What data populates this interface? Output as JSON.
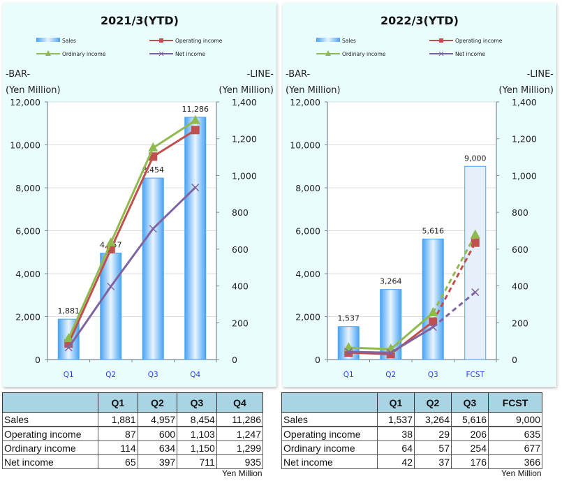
{
  "chart_data": [
    {
      "type": "bar+line",
      "title": "2021/3(YTD)",
      "categories": [
        "Q1",
        "Q2",
        "Q3",
        "Q4"
      ],
      "left_axis": {
        "label_top": "-BAR-",
        "label": "(Yen Million)",
        "range": [
          0,
          12000
        ],
        "ticks": [
          "0",
          "2,000",
          "4,000",
          "6,000",
          "8,000",
          "10,000",
          "12,000"
        ],
        "tick_values": [
          0,
          2000,
          4000,
          6000,
          8000,
          10000,
          12000
        ]
      },
      "right_axis": {
        "label_top": "-LINE-",
        "label": "(Yen Million)",
        "range": [
          0,
          1400
        ],
        "ticks": [
          "0",
          "200",
          "400",
          "600",
          "800",
          "1,000",
          "1,200",
          "1,400"
        ],
        "tick_values": [
          0,
          200,
          400,
          600,
          800,
          1000,
          1200,
          1400
        ]
      },
      "legend": [
        "Sales",
        "Operating income",
        "Ordinary income",
        "Net income"
      ],
      "legend_position": "top",
      "grid": true,
      "forecast_index": null,
      "bars": {
        "name": "Sales",
        "values": [
          1881,
          4957,
          8454,
          11286
        ],
        "labels": [
          "1,881",
          "4,957",
          "8,454",
          "11,286"
        ]
      },
      "series": [
        {
          "name": "Operating income",
          "values": [
            87,
            600,
            1103,
            1247
          ],
          "color": "#c0504d",
          "marker": "square"
        },
        {
          "name": "Ordinary income",
          "values": [
            114,
            634,
            1150,
            1299
          ],
          "color": "#8fba4f",
          "marker": "triangle"
        },
        {
          "name": "Net income",
          "values": [
            65,
            397,
            711,
            935
          ],
          "color": "#8064a2",
          "marker": "x"
        }
      ]
    },
    {
      "type": "bar+line",
      "title": "2022/3(YTD)",
      "categories": [
        "Q1",
        "Q2",
        "Q3",
        "FCST"
      ],
      "left_axis": {
        "label_top": "-BAR-",
        "label": "(Yen Million)",
        "range": [
          0,
          12000
        ],
        "ticks": [
          "0",
          "2,000",
          "4,000",
          "6,000",
          "8,000",
          "10,000",
          "12,000"
        ],
        "tick_values": [
          0,
          2000,
          4000,
          6000,
          8000,
          10000,
          12000
        ]
      },
      "right_axis": {
        "label_top": "-LINE-",
        "label": "(Yen Million)",
        "range": [
          0,
          1400
        ],
        "ticks": [
          "0",
          "200",
          "400",
          "600",
          "800",
          "1,000",
          "1,200",
          "1,400"
        ],
        "tick_values": [
          0,
          200,
          400,
          600,
          800,
          1000,
          1200,
          1400
        ]
      },
      "legend": [
        "Sales",
        "Operating income",
        "Ordinary income",
        "Net income"
      ],
      "legend_position": "top",
      "grid": true,
      "forecast_index": 3,
      "bars": {
        "name": "Sales",
        "values": [
          1537,
          3264,
          5616,
          9000
        ],
        "labels": [
          "1,537",
          "3,264",
          "5,616",
          "9,000"
        ]
      },
      "series": [
        {
          "name": "Operating income",
          "values": [
            38,
            29,
            206,
            635
          ],
          "color": "#c0504d",
          "marker": "square"
        },
        {
          "name": "Ordinary income",
          "values": [
            64,
            57,
            254,
            677
          ],
          "color": "#8fba4f",
          "marker": "triangle"
        },
        {
          "name": "Net income",
          "values": [
            42,
            37,
            176,
            366
          ],
          "color": "#8064a2",
          "marker": "x"
        }
      ]
    }
  ],
  "tables": [
    {
      "headers": [
        "",
        "Q1",
        "Q2",
        "Q3",
        "Q4"
      ],
      "rows": [
        {
          "label": "Sales",
          "values": [
            "1,881",
            "4,957",
            "8,454",
            "11,286"
          ]
        },
        {
          "label": "Operating income",
          "values": [
            "87",
            "600",
            "1,103",
            "1,247"
          ]
        },
        {
          "label": "Ordinary income",
          "values": [
            "114",
            "634",
            "1,150",
            "1,299"
          ]
        },
        {
          "label": "Net income",
          "values": [
            "65",
            "397",
            "711",
            "935"
          ]
        }
      ],
      "unit": "Yen Million"
    },
    {
      "headers": [
        "",
        "Q1",
        "Q2",
        "Q3",
        "FCST"
      ],
      "rows": [
        {
          "label": "Sales",
          "values": [
            "1,537",
            "3,264",
            "5,616",
            "9,000"
          ]
        },
        {
          "label": "Operating income",
          "values": [
            "38",
            "29",
            "206",
            "635"
          ]
        },
        {
          "label": "Ordinary income",
          "values": [
            "64",
            "57",
            "254",
            "677"
          ]
        },
        {
          "label": "Net income",
          "values": [
            "42",
            "37",
            "176",
            "366"
          ]
        }
      ],
      "unit": "Yen Million"
    }
  ],
  "colors": {
    "bar": "#5aa9f5",
    "bar_forecast": "#e6f0fb",
    "panel_bg": "#eafdfd",
    "header_bg": "#a8d4e4",
    "category_text": "#2a3df0"
  }
}
